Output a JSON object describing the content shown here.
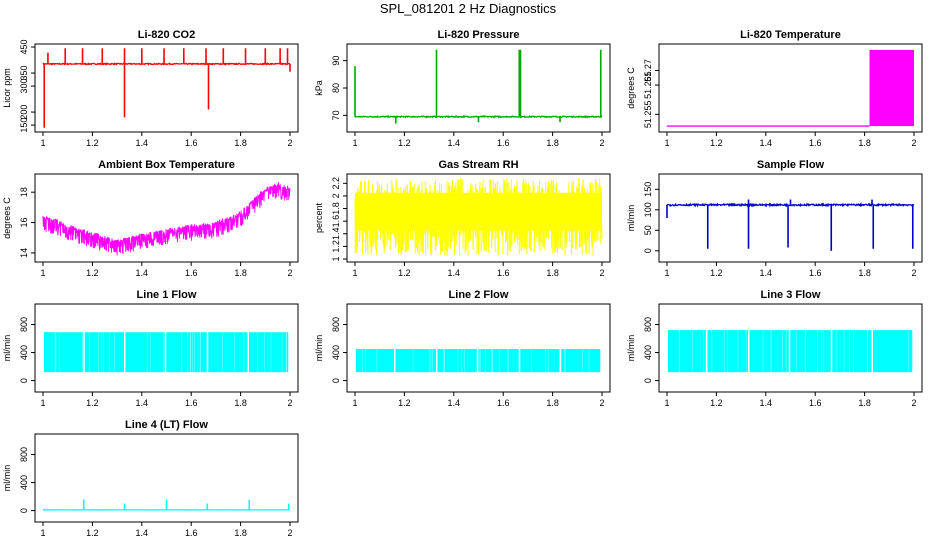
{
  "title": "SPL_081201  2 Hz Diagnostics",
  "chart_data": [
    {
      "type": "line",
      "title": "Li-820 CO2",
      "ylabel": "Licor ppm",
      "color": "#ff0000",
      "xlim": [
        1.0,
        2.0
      ],
      "ylim": [
        135,
        450
      ],
      "xticks": [
        1.0,
        1.2,
        1.4,
        1.6,
        1.8,
        2.0
      ],
      "yticks": [
        150,
        200,
        300,
        350,
        450
      ],
      "series": [
        {
          "pattern": "baseline_spikes",
          "base": 385,
          "noise": 4,
          "spikes_up": [
            [
              1.02,
              428
            ],
            [
              1.09,
              445
            ],
            [
              1.16,
              445
            ],
            [
              1.24,
              445
            ],
            [
              1.33,
              445
            ],
            [
              1.4,
              445
            ],
            [
              1.49,
              445
            ],
            [
              1.57,
              445
            ],
            [
              1.66,
              445
            ],
            [
              1.73,
              445
            ],
            [
              1.82,
              445
            ],
            [
              1.9,
              445
            ],
            [
              1.96,
              445
            ],
            [
              1.99,
              445
            ]
          ],
          "spikes_down": [
            [
              1.005,
              140
            ],
            [
              1.33,
              180
            ],
            [
              1.67,
              210
            ],
            [
              2.0,
              355
            ]
          ]
        }
      ]
    },
    {
      "type": "line",
      "title": "Li-820 Pressure",
      "ylabel": "kPa",
      "color": "#00aa00",
      "xlim": [
        1.0,
        2.0
      ],
      "ylim": [
        65,
        95
      ],
      "xticks": [
        1.0,
        1.2,
        1.4,
        1.6,
        1.8,
        2.0
      ],
      "yticks": [
        70,
        80,
        90
      ],
      "series": [
        {
          "pattern": "baseline_spikes",
          "base": 69.5,
          "noise": 0.4,
          "spikes_up": [
            [
              1.0,
              88
            ],
            [
              1.33,
              94
            ],
            [
              1.665,
              94
            ],
            [
              1.67,
              94
            ],
            [
              1.995,
              94
            ]
          ],
          "spikes_down": [
            [
              1.165,
              67
            ],
            [
              1.5,
              67.5
            ],
            [
              1.83,
              67.5
            ]
          ]
        }
      ]
    },
    {
      "type": "area",
      "title": "Li-820 Temperature",
      "ylabel": "degrees C",
      "color": "#ff00ff",
      "xlim": [
        1.0,
        2.0
      ],
      "ylim": [
        51.25,
        51.278
      ],
      "xticks": [
        1.0,
        1.2,
        1.4,
        1.6,
        1.8,
        2.0
      ],
      "yticks": [
        51.255,
        51.265,
        51.27
      ],
      "series": [
        {
          "pattern": "step_band",
          "base": 51.251,
          "step_x": 1.82,
          "band": [
            51.251,
            51.277
          ]
        }
      ]
    },
    {
      "type": "line",
      "title": "Ambient Box Temperature",
      "ylabel": "degrees C",
      "color": "#ff00ff",
      "xlim": [
        1.0,
        2.0
      ],
      "ylim": [
        13.6,
        19.0
      ],
      "xticks": [
        1.0,
        1.2,
        1.4,
        1.6,
        1.8,
        2.0
      ],
      "yticks": [
        14,
        16,
        18
      ],
      "series": [
        {
          "pattern": "smooth_noise",
          "noise": 0.8,
          "x": [
            1.0,
            1.05,
            1.1,
            1.2,
            1.3,
            1.4,
            1.5,
            1.6,
            1.7,
            1.75,
            1.8,
            1.85,
            1.9,
            1.95,
            2.0
          ],
          "y": [
            16.2,
            16.0,
            15.6,
            15.1,
            14.6,
            15.0,
            15.3,
            15.6,
            15.8,
            16.1,
            16.5,
            17.3,
            18.0,
            18.4,
            18.1
          ]
        }
      ]
    },
    {
      "type": "area",
      "title": "Gas Stream RH",
      "ylabel": "percent",
      "color": "#ffff00",
      "xlim": [
        1.0,
        2.0
      ],
      "ylim": [
        1.0,
        2.3
      ],
      "xticks": [
        1.0,
        1.2,
        1.4,
        1.6,
        1.8,
        2.0
      ],
      "yticks": [
        1.0,
        1.2,
        1.4,
        1.6,
        1.8,
        2.0,
        2.2
      ],
      "series": [
        {
          "pattern": "noise_band",
          "band": [
            1.05,
            2.28
          ]
        }
      ]
    },
    {
      "type": "line",
      "title": "Sample Flow",
      "ylabel": "ml/min",
      "color": "#0000cc",
      "xlim": [
        1.0,
        2.0
      ],
      "ylim": [
        -20,
        180
      ],
      "xticks": [
        1.0,
        1.2,
        1.4,
        1.6,
        1.8,
        2.0
      ],
      "yticks": [
        0,
        50,
        100,
        150
      ],
      "series": [
        {
          "pattern": "baseline_spikes",
          "base": 112,
          "noise": 4,
          "spikes_up": [
            [
              1.33,
              125
            ],
            [
              1.5,
              125
            ],
            [
              1.83,
              125
            ]
          ],
          "spikes_down": [
            [
              1.0,
              80
            ],
            [
              1.165,
              5
            ],
            [
              1.33,
              5
            ],
            [
              1.49,
              8
            ],
            [
              1.665,
              0
            ],
            [
              1.835,
              5
            ],
            [
              1.995,
              5
            ]
          ]
        }
      ]
    },
    {
      "type": "area",
      "title": "Line 1 Flow",
      "ylabel": "ml/min",
      "color": "#00ffff",
      "xlim": [
        1.0,
        2.0
      ],
      "ylim": [
        -120,
        1050
      ],
      "xticks": [
        1.0,
        1.2,
        1.4,
        1.6,
        1.8,
        2.0
      ],
      "yticks": [
        0,
        400,
        800
      ],
      "series": [
        {
          "pattern": "blocks",
          "low": 120,
          "high": 690,
          "gaps": [
            1.165,
            1.33,
            1.495,
            1.665,
            1.83,
            1.995
          ]
        }
      ]
    },
    {
      "type": "area",
      "title": "Line 2 Flow",
      "ylabel": "ml/min",
      "color": "#00ffff",
      "xlim": [
        1.0,
        2.0
      ],
      "ylim": [
        -120,
        1050
      ],
      "xticks": [
        1.0,
        1.2,
        1.4,
        1.6,
        1.8,
        2.0
      ],
      "yticks": [
        0,
        400,
        800
      ],
      "series": [
        {
          "pattern": "blocks",
          "low": 120,
          "high": 450,
          "gaps": [
            1.16,
            1.33,
            1.495,
            1.665,
            1.83,
            1.995
          ]
        }
      ]
    },
    {
      "type": "area",
      "title": "Line 3 Flow",
      "ylabel": "ml/min",
      "color": "#00ffff",
      "xlim": [
        1.0,
        2.0
      ],
      "ylim": [
        -120,
        1050
      ],
      "xticks": [
        1.0,
        1.2,
        1.4,
        1.6,
        1.8,
        2.0
      ],
      "yticks": [
        0,
        400,
        800
      ],
      "series": [
        {
          "pattern": "blocks",
          "low": 120,
          "high": 720,
          "gaps": [
            1.16,
            1.33,
            1.495,
            1.665,
            1.83,
            1.995
          ]
        }
      ]
    },
    {
      "type": "line",
      "title": "Line 4 (LT) Flow",
      "ylabel": "ml/min",
      "color": "#00ffff",
      "xlim": [
        1.0,
        2.0
      ],
      "ylim": [
        -120,
        1050
      ],
      "xticks": [
        1.0,
        1.2,
        1.4,
        1.6,
        1.8,
        2.0
      ],
      "yticks": [
        0,
        400,
        800
      ],
      "series": [
        {
          "pattern": "baseline_spikes",
          "base": 10,
          "noise": 4,
          "spikes_up": [
            [
              1.165,
              160
            ],
            [
              1.33,
              100
            ],
            [
              1.5,
              160
            ],
            [
              1.665,
              100
            ],
            [
              1.835,
              150
            ],
            [
              1.995,
              100
            ]
          ],
          "spikes_down": []
        }
      ]
    }
  ]
}
